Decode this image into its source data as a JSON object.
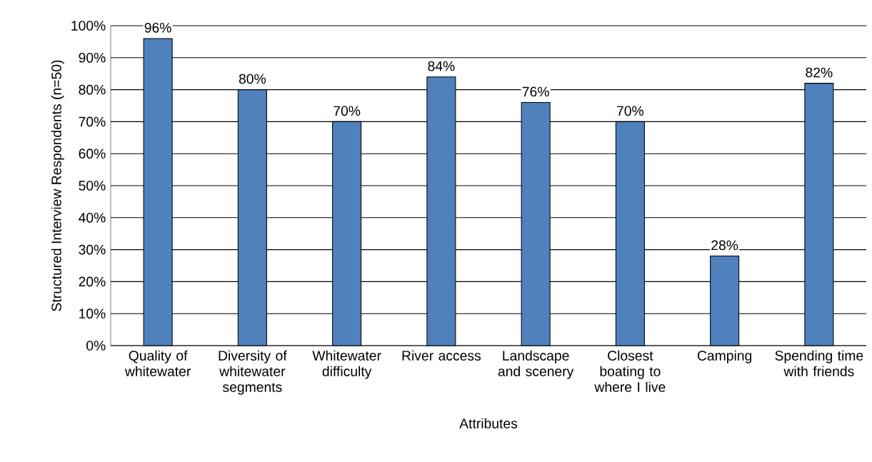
{
  "chart_data": {
    "type": "bar",
    "xlabel": "Attributes",
    "ylabel": "Structured Interview Respondents (n=50)",
    "categories": [
      "Quality of whitewater",
      "Diversity of whitewater segments",
      "Whitewater difficulty",
      "River access",
      "Landscape and scenery",
      "Closest boating to where I live",
      "Camping",
      "Spending time with friends"
    ],
    "values": [
      96,
      80,
      70,
      84,
      76,
      70,
      28,
      82
    ],
    "value_labels": [
      "96%",
      "80%",
      "70%",
      "84%",
      "76%",
      "70%",
      "28%",
      "82%"
    ],
    "color": "#4f81bd",
    "ylim": [
      0,
      100
    ],
    "yticks": [
      {
        "value": 0,
        "label": "0%"
      },
      {
        "value": 10,
        "label": "10%"
      },
      {
        "value": 20,
        "label": "20%"
      },
      {
        "value": 30,
        "label": "30%"
      },
      {
        "value": 40,
        "label": "40%"
      },
      {
        "value": 50,
        "label": "50%"
      },
      {
        "value": 60,
        "label": "60%"
      },
      {
        "value": 70,
        "label": "70%"
      },
      {
        "value": 80,
        "label": "80%"
      },
      {
        "value": 90,
        "label": "90%"
      },
      {
        "value": 100,
        "label": "100%"
      }
    ],
    "grid": "y"
  }
}
